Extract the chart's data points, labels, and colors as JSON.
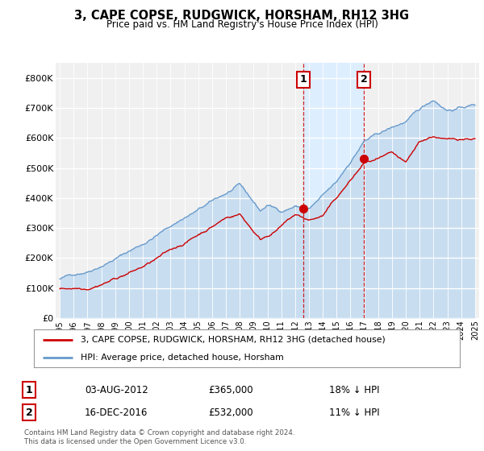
{
  "title": "3, CAPE COPSE, RUDGWICK, HORSHAM, RH12 3HG",
  "subtitle": "Price paid vs. HM Land Registry's House Price Index (HPI)",
  "legend_line1": "3, CAPE COPSE, RUDGWICK, HORSHAM, RH12 3HG (detached house)",
  "legend_line2": "HPI: Average price, detached house, Horsham",
  "annotation1_date": "03-AUG-2012",
  "annotation1_price": "£365,000",
  "annotation1_hpi": "18% ↓ HPI",
  "annotation2_date": "16-DEC-2016",
  "annotation2_price": "£532,000",
  "annotation2_hpi": "11% ↓ HPI",
  "footnote": "Contains HM Land Registry data © Crown copyright and database right 2024.\nThis data is licensed under the Open Government Licence v3.0.",
  "hpi_color": "#6699cc",
  "price_color": "#cc0000",
  "dashed_color": "#cc0000",
  "background_color": "#ffffff",
  "plot_bg_color": "#f0f0f0",
  "hpi_fill_color": "#c8ddf0",
  "sale_region_color": "#ddeeff",
  "ylim": [
    0,
    850000
  ],
  "yticks": [
    0,
    100000,
    200000,
    300000,
    400000,
    500000,
    600000,
    700000,
    800000
  ],
  "ytick_labels": [
    "£0",
    "£100K",
    "£200K",
    "£300K",
    "£400K",
    "£500K",
    "£600K",
    "£700K",
    "£800K"
  ],
  "sale1_x": 2012.58,
  "sale1_y": 365000,
  "sale2_x": 2016.96,
  "sale2_y": 532000,
  "xlim_min": 1994.7,
  "xlim_max": 2025.3
}
